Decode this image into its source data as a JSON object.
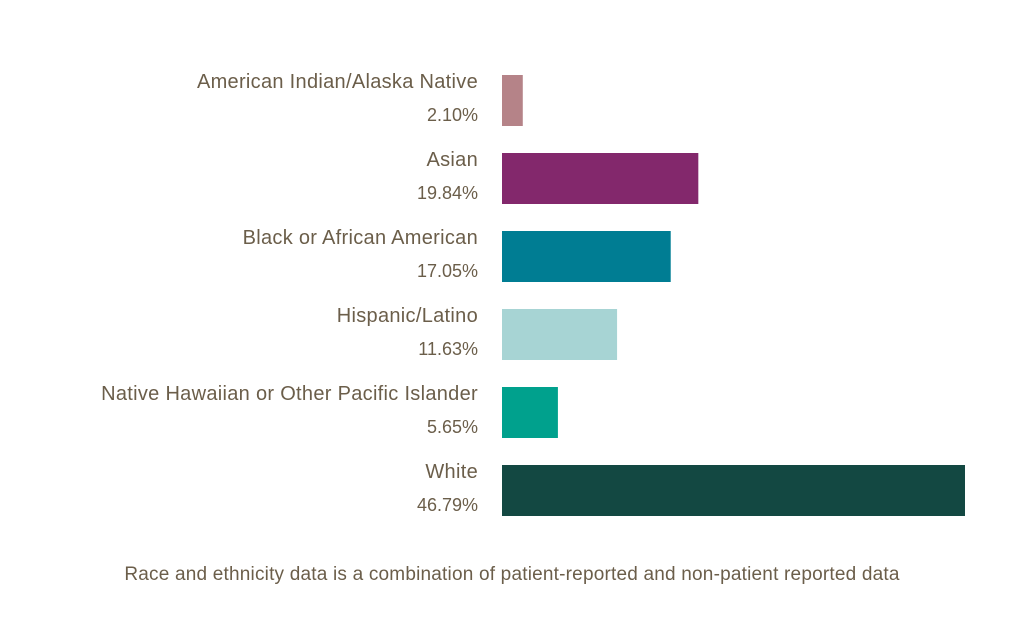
{
  "chart_data": {
    "type": "bar",
    "orientation": "horizontal",
    "categories": [
      "American Indian/Alaska Native",
      "Asian",
      "Black or African American",
      "Hispanic/Latino",
      "Native Hawaiian or Other Pacific Islander",
      "White"
    ],
    "values": [
      2.1,
      19.84,
      17.05,
      11.63,
      5.65,
      46.79
    ],
    "value_labels": [
      "2.10%",
      "19.84%",
      "17.05%",
      "11.63%",
      "5.65%",
      "46.79%"
    ],
    "colors": [
      "#b58388",
      "#83286c",
      "#007d93",
      "#a7d4d4",
      "#00a18d",
      "#134842"
    ],
    "xlim": [
      0,
      46.79
    ],
    "grid": false,
    "legend": "none",
    "title": "",
    "xlabel": "",
    "ylabel": ""
  },
  "footnote": "Race and ethnicity data is a combination of patient-reported and non-patient reported data"
}
